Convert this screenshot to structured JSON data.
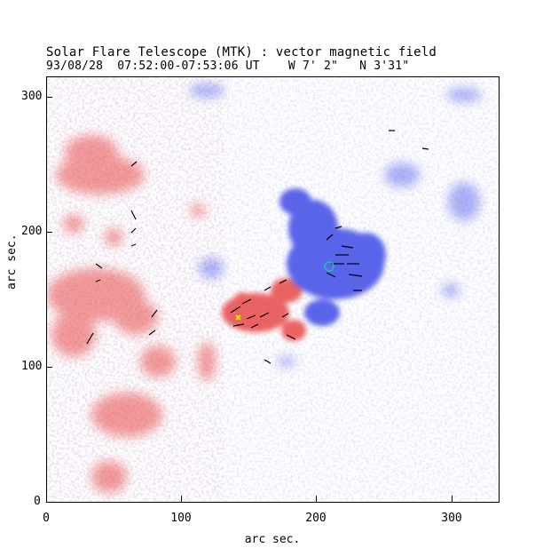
{
  "figure": {
    "title": "Solar Flare Telescope (MTK) : vector magnetic field",
    "subtitle": "93/08/28  07:52:00-07:53:06 UT    W 7' 2\"   N 3'31\"",
    "xlabel": "arc sec.",
    "ylabel": "arc sec.",
    "xlim": [
      0,
      335
    ],
    "ylim": [
      0,
      315
    ],
    "xticks": [
      "0",
      "100",
      "200",
      "300"
    ],
    "yticks": [
      "0",
      "100",
      "200",
      "300"
    ],
    "xtick_values": [
      0,
      100,
      200,
      300
    ],
    "ytick_values": [
      0,
      100,
      200,
      300
    ]
  },
  "colors": {
    "positive_polarity": "#e84a4a",
    "negative_polarity": "#4a55e8",
    "transverse_field_vectors": "#000000",
    "marker_circle": "#22bbbb",
    "marker_cross": "#dddd00"
  }
}
